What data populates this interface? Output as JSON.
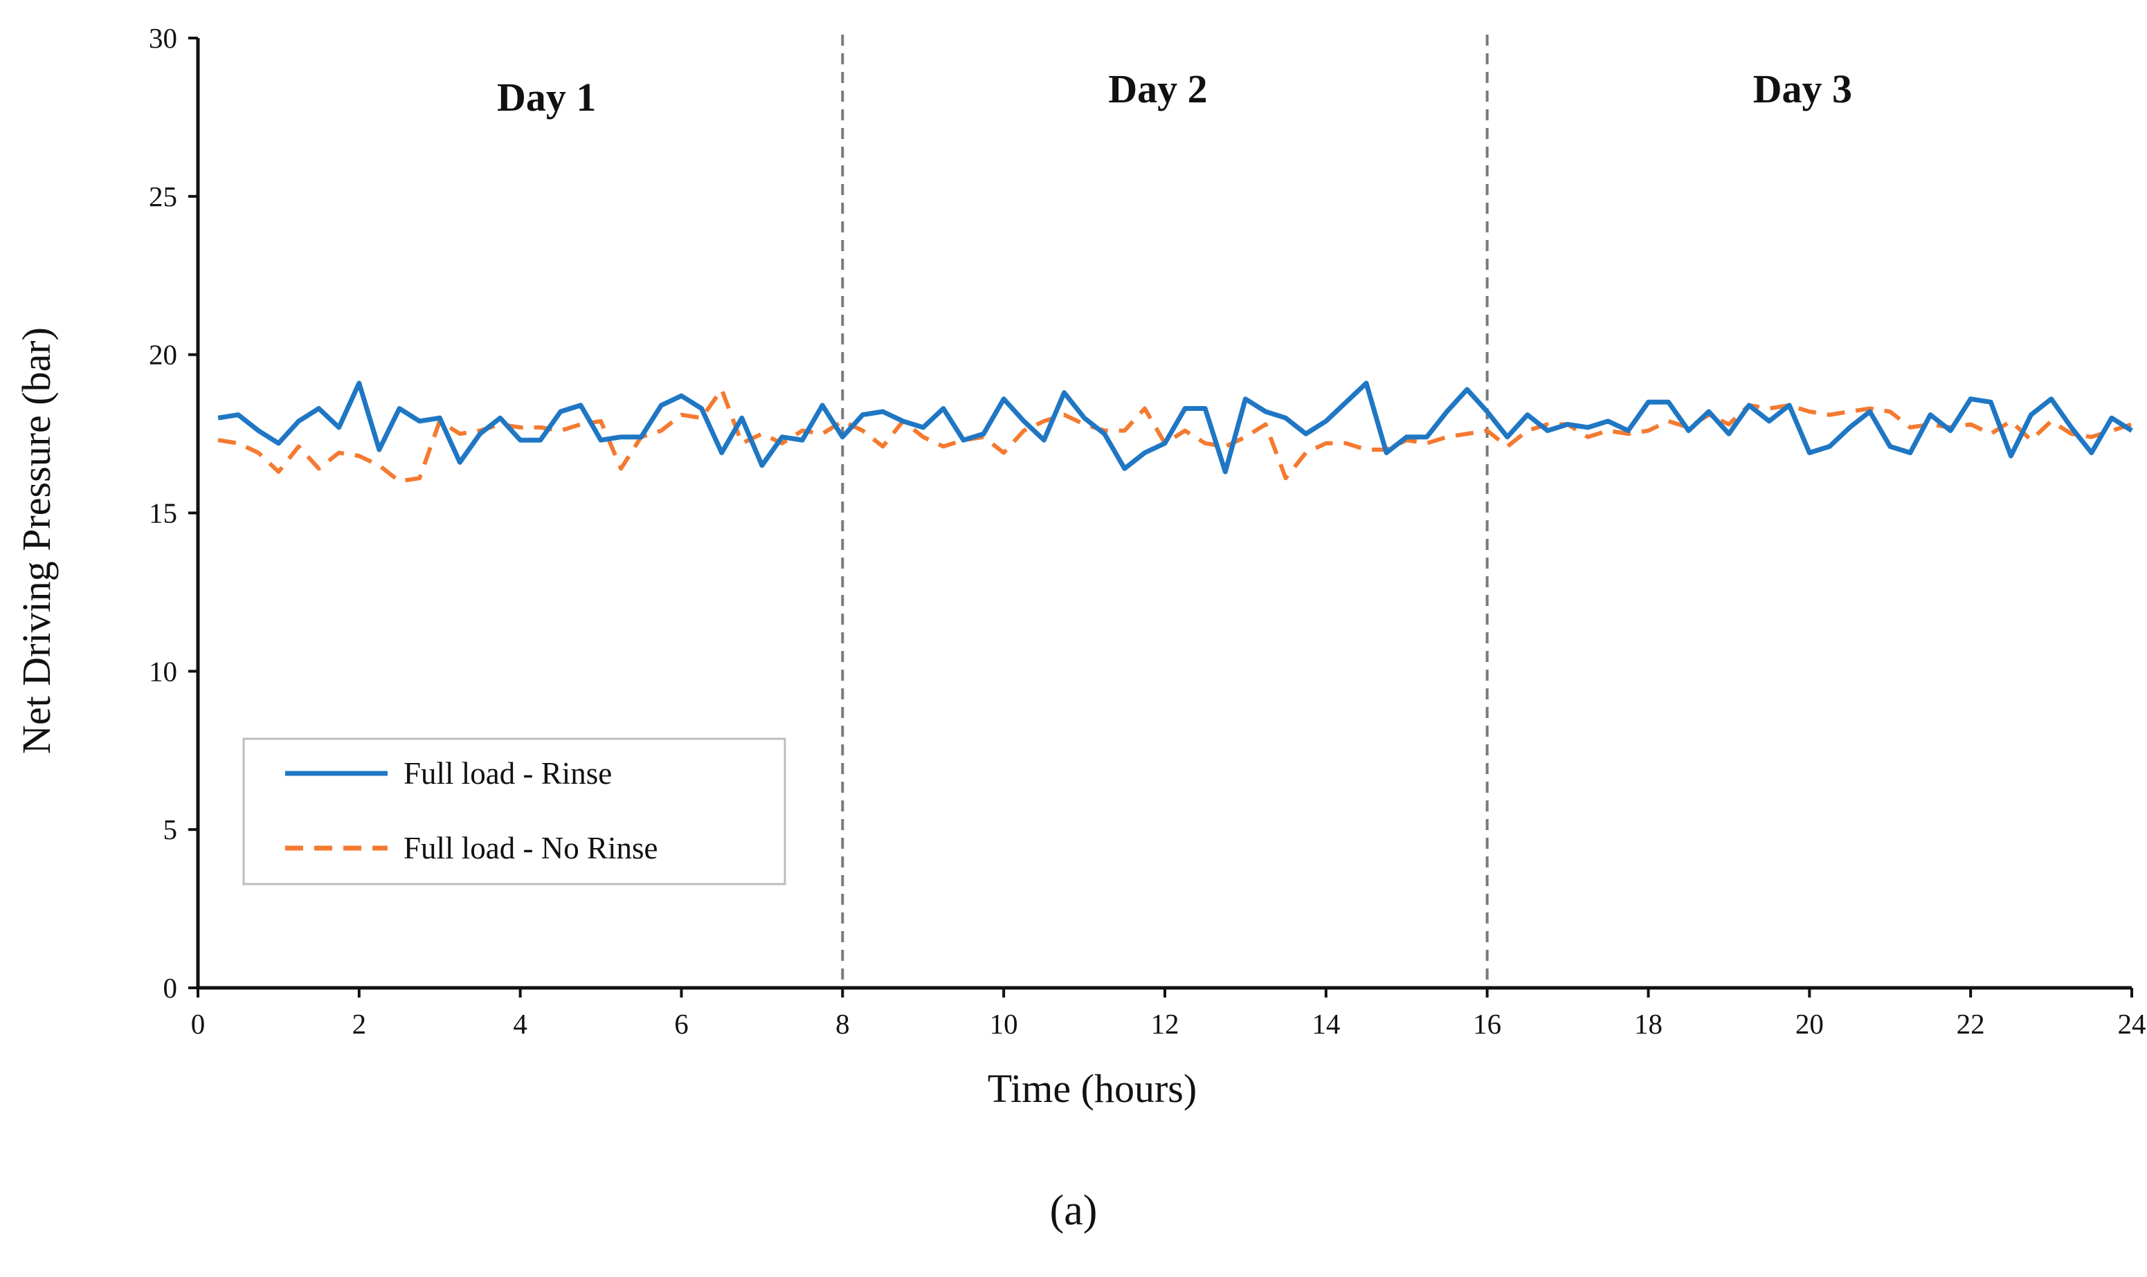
{
  "chart_data": {
    "type": "line",
    "caption": "(a)",
    "xlabel": "Time (hours)",
    "ylabel": "Net Driving Pressure (bar)",
    "xlim": [
      0,
      24
    ],
    "ylim": [
      0,
      30
    ],
    "x_ticks": [
      0,
      2,
      4,
      6,
      8,
      10,
      12,
      14,
      16,
      18,
      20,
      22,
      24
    ],
    "y_ticks": [
      0,
      5,
      10,
      15,
      20,
      25,
      30
    ],
    "grid": false,
    "legend_position": "bottom-left",
    "separators": [
      8,
      16
    ],
    "day_labels": [
      {
        "text": "Day 1",
        "x": 4
      },
      {
        "text": "Day 2",
        "x": 12
      },
      {
        "text": "Day 3",
        "x": 20
      }
    ],
    "series": [
      {
        "name": "Full load - Rinse",
        "color": "#1f77c4",
        "style": "solid",
        "x": [
          0.25,
          0.5,
          0.75,
          1,
          1.25,
          1.5,
          1.75,
          2,
          2.25,
          2.5,
          2.75,
          3,
          3.25,
          3.5,
          3.75,
          4,
          4.25,
          4.5,
          4.75,
          5,
          5.25,
          5.5,
          5.75,
          6,
          6.25,
          6.5,
          6.75,
          7,
          7.25,
          7.5,
          7.75,
          8,
          8.25,
          8.5,
          8.75,
          9,
          9.25,
          9.5,
          9.75,
          10,
          10.25,
          10.5,
          10.75,
          11,
          11.25,
          11.5,
          11.75,
          12,
          12.25,
          12.5,
          12.75,
          13,
          13.25,
          13.5,
          13.75,
          14,
          14.25,
          14.5,
          14.75,
          15,
          15.25,
          15.5,
          15.75,
          16,
          16.25,
          16.5,
          16.75,
          17,
          17.25,
          17.5,
          17.75,
          18,
          18.25,
          18.5,
          18.75,
          19,
          19.25,
          19.5,
          19.75,
          20,
          20.25,
          20.5,
          20.75,
          21,
          21.25,
          21.5,
          21.75,
          22,
          22.25,
          22.5,
          22.75,
          23,
          23.25,
          23.5,
          23.75,
          24
        ],
        "values": [
          18.0,
          18.1,
          17.6,
          17.2,
          17.9,
          18.3,
          17.7,
          19.1,
          17.0,
          18.3,
          17.9,
          18.0,
          16.6,
          17.5,
          18.0,
          17.3,
          17.3,
          18.2,
          18.4,
          17.3,
          17.4,
          17.4,
          18.4,
          18.7,
          18.3,
          16.9,
          18.0,
          16.5,
          17.4,
          17.3,
          18.4,
          17.4,
          18.1,
          18.2,
          17.9,
          17.7,
          18.3,
          17.3,
          17.5,
          18.6,
          17.9,
          17.3,
          18.8,
          18.0,
          17.5,
          16.4,
          16.9,
          17.2,
          18.3,
          18.3,
          16.3,
          18.6,
          18.2,
          18.0,
          17.5,
          17.9,
          18.5,
          19.1,
          16.9,
          17.4,
          17.4,
          18.2,
          18.9,
          18.2,
          17.4,
          18.1,
          17.6,
          17.8,
          17.7,
          17.9,
          17.6,
          18.5,
          18.5,
          17.6,
          18.2,
          17.5,
          18.4,
          17.9,
          18.4,
          16.9,
          17.1,
          17.7,
          18.2,
          17.1,
          16.9,
          18.1,
          17.6,
          18.6,
          18.5,
          16.8,
          18.1,
          18.6,
          17.7,
          16.9,
          18.0,
          17.6
        ]
      },
      {
        "name": "Full load - No Rinse",
        "color": "#f47a30",
        "style": "dashed",
        "x": [
          0.25,
          0.5,
          0.75,
          1,
          1.25,
          1.5,
          1.75,
          2,
          2.25,
          2.5,
          2.75,
          3,
          3.25,
          3.5,
          3.75,
          4,
          4.25,
          4.5,
          4.75,
          5,
          5.25,
          5.5,
          5.75,
          6,
          6.25,
          6.5,
          6.75,
          7,
          7.25,
          7.5,
          7.75,
          8,
          8.25,
          8.5,
          8.75,
          9,
          9.25,
          9.5,
          9.75,
          10,
          10.25,
          10.5,
          10.75,
          11,
          11.25,
          11.5,
          11.75,
          12,
          12.25,
          12.5,
          12.75,
          13,
          13.25,
          13.5,
          13.75,
          14,
          14.25,
          14.5,
          14.75,
          15,
          15.25,
          15.5,
          15.75,
          16,
          16.25,
          16.5,
          16.75,
          17,
          17.25,
          17.5,
          17.75,
          18,
          18.25,
          18.5,
          18.75,
          19,
          19.25,
          19.5,
          19.75,
          20,
          20.25,
          20.5,
          20.75,
          21,
          21.25,
          21.5,
          21.75,
          22,
          22.25,
          22.5,
          22.75,
          23,
          23.25,
          23.5,
          23.75,
          24
        ],
        "values": [
          17.3,
          17.2,
          16.9,
          16.3,
          17.1,
          16.4,
          16.9,
          16.8,
          16.5,
          16.0,
          16.1,
          17.9,
          17.5,
          17.6,
          17.8,
          17.7,
          17.7,
          17.6,
          17.8,
          17.9,
          16.4,
          17.4,
          17.6,
          18.1,
          18.0,
          18.9,
          17.2,
          17.5,
          17.2,
          17.6,
          17.5,
          17.9,
          17.6,
          17.1,
          17.9,
          17.4,
          17.1,
          17.3,
          17.4,
          16.9,
          17.6,
          17.9,
          18.1,
          17.8,
          17.6,
          17.6,
          18.3,
          17.2,
          17.6,
          17.2,
          17.1,
          17.4,
          17.8,
          16.1,
          16.9,
          17.2,
          17.2,
          17.0,
          17.0,
          17.3,
          17.2,
          17.4,
          17.5,
          17.6,
          17.1,
          17.6,
          17.8,
          17.8,
          17.4,
          17.6,
          17.5,
          17.6,
          17.9,
          17.7,
          18.1,
          17.8,
          18.4,
          18.3,
          18.4,
          18.2,
          18.1,
          18.2,
          18.3,
          18.2,
          17.7,
          17.8,
          17.7,
          17.8,
          17.5,
          17.9,
          17.3,
          17.9,
          17.5,
          17.4,
          17.6,
          17.8
        ]
      }
    ]
  }
}
